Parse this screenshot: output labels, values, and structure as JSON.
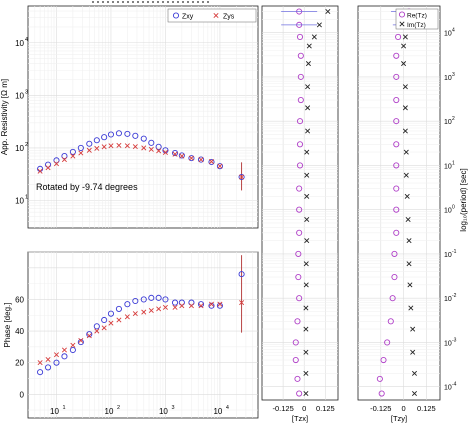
{
  "chart_data": [
    {
      "type": "scatter",
      "xscale": "log",
      "yscale": "log",
      "xlim": [
        3,
        50000
      ],
      "ylim": [
        3,
        50000
      ],
      "ylabel": "App. Resistivity [Ω m]",
      "annotation": "Rotated by -9.74 degrees",
      "legend_position": "top-right",
      "series": [
        {
          "name": "Zxy",
          "marker": "circle",
          "color": "#3b3bd6",
          "points": [
            [
              5,
              40
            ],
            [
              7,
              48
            ],
            [
              10,
              58
            ],
            [
              14,
              70
            ],
            [
              20,
              84
            ],
            [
              28,
              100
            ],
            [
              40,
              120
            ],
            [
              55,
              140
            ],
            [
              75,
              160
            ],
            [
              100,
              180
            ],
            [
              140,
              190
            ],
            [
              200,
              185
            ],
            [
              280,
              170
            ],
            [
              400,
              150
            ],
            [
              550,
              125
            ],
            [
              750,
              105
            ],
            [
              1000,
              90
            ],
            [
              1500,
              80
            ],
            [
              2000,
              72
            ],
            [
              3000,
              64
            ],
            [
              4500,
              60
            ],
            [
              7000,
              54
            ],
            [
              10000,
              45
            ]
          ]
        },
        {
          "name": "Zys",
          "marker": "x",
          "color": "#d63b3b",
          "points": [
            [
              5,
              36
            ],
            [
              7,
              42
            ],
            [
              10,
              50
            ],
            [
              14,
              60
            ],
            [
              20,
              70
            ],
            [
              28,
              80
            ],
            [
              40,
              90
            ],
            [
              55,
              98
            ],
            [
              75,
              105
            ],
            [
              100,
              110
            ],
            [
              140,
              112
            ],
            [
              200,
              110
            ],
            [
              280,
              106
            ],
            [
              400,
              100
            ],
            [
              550,
              94
            ],
            [
              750,
              88
            ],
            [
              1000,
              82
            ],
            [
              1500,
              76
            ],
            [
              2000,
              70
            ],
            [
              3000,
              64
            ],
            [
              4500,
              60
            ],
            [
              7000,
              55
            ],
            [
              10000,
              45
            ]
          ]
        }
      ],
      "tail_point": {
        "x": 25000,
        "y": 28
      }
    },
    {
      "type": "scatter",
      "xscale": "log",
      "xlim": [
        3,
        50000
      ],
      "ylim": [
        -15,
        90
      ],
      "ylabel": "Phase [deg.]",
      "series": [
        {
          "name": "Zxy",
          "marker": "circle",
          "color": "#3b3bd6",
          "points": [
            [
              5,
              14
            ],
            [
              7,
              17
            ],
            [
              10,
              20
            ],
            [
              14,
              24
            ],
            [
              20,
              28
            ],
            [
              28,
              33
            ],
            [
              40,
              38
            ],
            [
              55,
              43
            ],
            [
              75,
              47
            ],
            [
              100,
              51
            ],
            [
              140,
              54
            ],
            [
              200,
              57
            ],
            [
              280,
              59
            ],
            [
              400,
              60
            ],
            [
              550,
              61
            ],
            [
              750,
              61
            ],
            [
              1000,
              60
            ],
            [
              1500,
              58
            ],
            [
              2000,
              58
            ],
            [
              3000,
              58
            ],
            [
              4500,
              57
            ],
            [
              7000,
              56
            ],
            [
              10000,
              56
            ]
          ]
        },
        {
          "name": "Zys",
          "marker": "x",
          "color": "#d63b3b",
          "points": [
            [
              5,
              20
            ],
            [
              7,
              22
            ],
            [
              10,
              25
            ],
            [
              14,
              28
            ],
            [
              20,
              31
            ],
            [
              28,
              34
            ],
            [
              40,
              37
            ],
            [
              55,
              40
            ],
            [
              75,
              42
            ],
            [
              100,
              45
            ],
            [
              140,
              47
            ],
            [
              200,
              49
            ],
            [
              280,
              51
            ],
            [
              400,
              52
            ],
            [
              550,
              53
            ],
            [
              750,
              54
            ],
            [
              1000,
              55
            ],
            [
              1500,
              55
            ],
            [
              2000,
              56
            ],
            [
              3000,
              56
            ],
            [
              4500,
              56
            ],
            [
              7000,
              57
            ],
            [
              10000,
              57
            ]
          ]
        }
      ],
      "tail_point": {
        "x": 25000,
        "y": 76
      }
    },
    {
      "type": "scatter",
      "yscale": "log",
      "yreversed": true,
      "xlabel": "[Tzx]",
      "xticks": [
        "-0.125",
        "0",
        "0.125"
      ],
      "xlim": [
        -0.25,
        0.2
      ],
      "ylim": [
        5e-05,
        40000
      ],
      "re": [
        [
          -0.03,
          7e-05
        ],
        [
          -0.04,
          0.00015
        ],
        [
          -0.05,
          0.0004
        ],
        [
          -0.05,
          0.001
        ],
        [
          -0.04,
          0.003
        ],
        [
          -0.03,
          0.01
        ],
        [
          -0.035,
          0.03
        ],
        [
          -0.035,
          0.1
        ],
        [
          -0.03,
          0.3
        ],
        [
          -0.03,
          1
        ],
        [
          -0.03,
          3
        ],
        [
          -0.025,
          10
        ],
        [
          -0.025,
          30
        ],
        [
          -0.025,
          100
        ],
        [
          -0.02,
          300
        ],
        [
          -0.02,
          1000
        ],
        [
          -0.02,
          3000
        ],
        [
          -0.025,
          8000
        ],
        [
          -0.03,
          15000
        ],
        [
          -0.03,
          30000
        ]
      ],
      "im": [
        [
          0.01,
          7e-05
        ],
        [
          0.01,
          0.0002
        ],
        [
          0.01,
          0.0006
        ],
        [
          0.01,
          0.002
        ],
        [
          0.01,
          0.006
        ],
        [
          0.012,
          0.02
        ],
        [
          0.012,
          0.06
        ],
        [
          0.015,
          0.2
        ],
        [
          0.015,
          0.6
        ],
        [
          0.015,
          2
        ],
        [
          0.015,
          6
        ],
        [
          0.015,
          20
        ],
        [
          0.02,
          60
        ],
        [
          0.02,
          200
        ],
        [
          0.02,
          600
        ],
        [
          0.025,
          2000
        ],
        [
          0.03,
          5000
        ],
        [
          0.06,
          8000
        ],
        [
          0.09,
          15000
        ],
        [
          0.14,
          30000
        ]
      ]
    },
    {
      "type": "scatter",
      "yscale": "log",
      "yreversed": true,
      "xlabel": "[Tzy]",
      "ylabel": "log₁₀(period) [sec]",
      "xticks": [
        "-0.125",
        "0",
        "0.125"
      ],
      "xlim": [
        -0.25,
        0.2
      ],
      "ylim": [
        5e-05,
        40000
      ],
      "legend_position": "top-right",
      "series_names": [
        "Re(Tz)",
        "Im(Tz)"
      ],
      "re": [
        [
          -0.12,
          7e-05
        ],
        [
          -0.13,
          0.00015
        ],
        [
          -0.11,
          0.0004
        ],
        [
          -0.09,
          0.001
        ],
        [
          -0.07,
          0.003
        ],
        [
          -0.06,
          0.01
        ],
        [
          -0.05,
          0.03
        ],
        [
          -0.05,
          0.1
        ],
        [
          -0.04,
          0.3
        ],
        [
          -0.04,
          1
        ],
        [
          -0.04,
          3
        ],
        [
          -0.04,
          10
        ],
        [
          -0.04,
          30
        ],
        [
          -0.04,
          100
        ],
        [
          -0.04,
          300
        ],
        [
          -0.04,
          1000
        ],
        [
          -0.04,
          3000
        ],
        [
          -0.03,
          8000
        ],
        [
          0.04,
          15000
        ],
        [
          0.03,
          30000
        ]
      ],
      "im": [
        [
          0.06,
          7e-05
        ],
        [
          0.06,
          0.0002
        ],
        [
          0.05,
          0.0006
        ],
        [
          0.05,
          0.002
        ],
        [
          0.04,
          0.006
        ],
        [
          0.035,
          0.02
        ],
        [
          0.03,
          0.06
        ],
        [
          0.03,
          0.2
        ],
        [
          0.025,
          0.6
        ],
        [
          0.02,
          2
        ],
        [
          0.015,
          6
        ],
        [
          0.015,
          20
        ],
        [
          0.01,
          60
        ],
        [
          0.01,
          200
        ],
        [
          0.01,
          600
        ],
        [
          0.0,
          2000
        ],
        [
          0.0,
          5000
        ],
        [
          0.01,
          8000
        ],
        [
          0.14,
          15000
        ],
        [
          0.15,
          30000
        ]
      ]
    }
  ]
}
